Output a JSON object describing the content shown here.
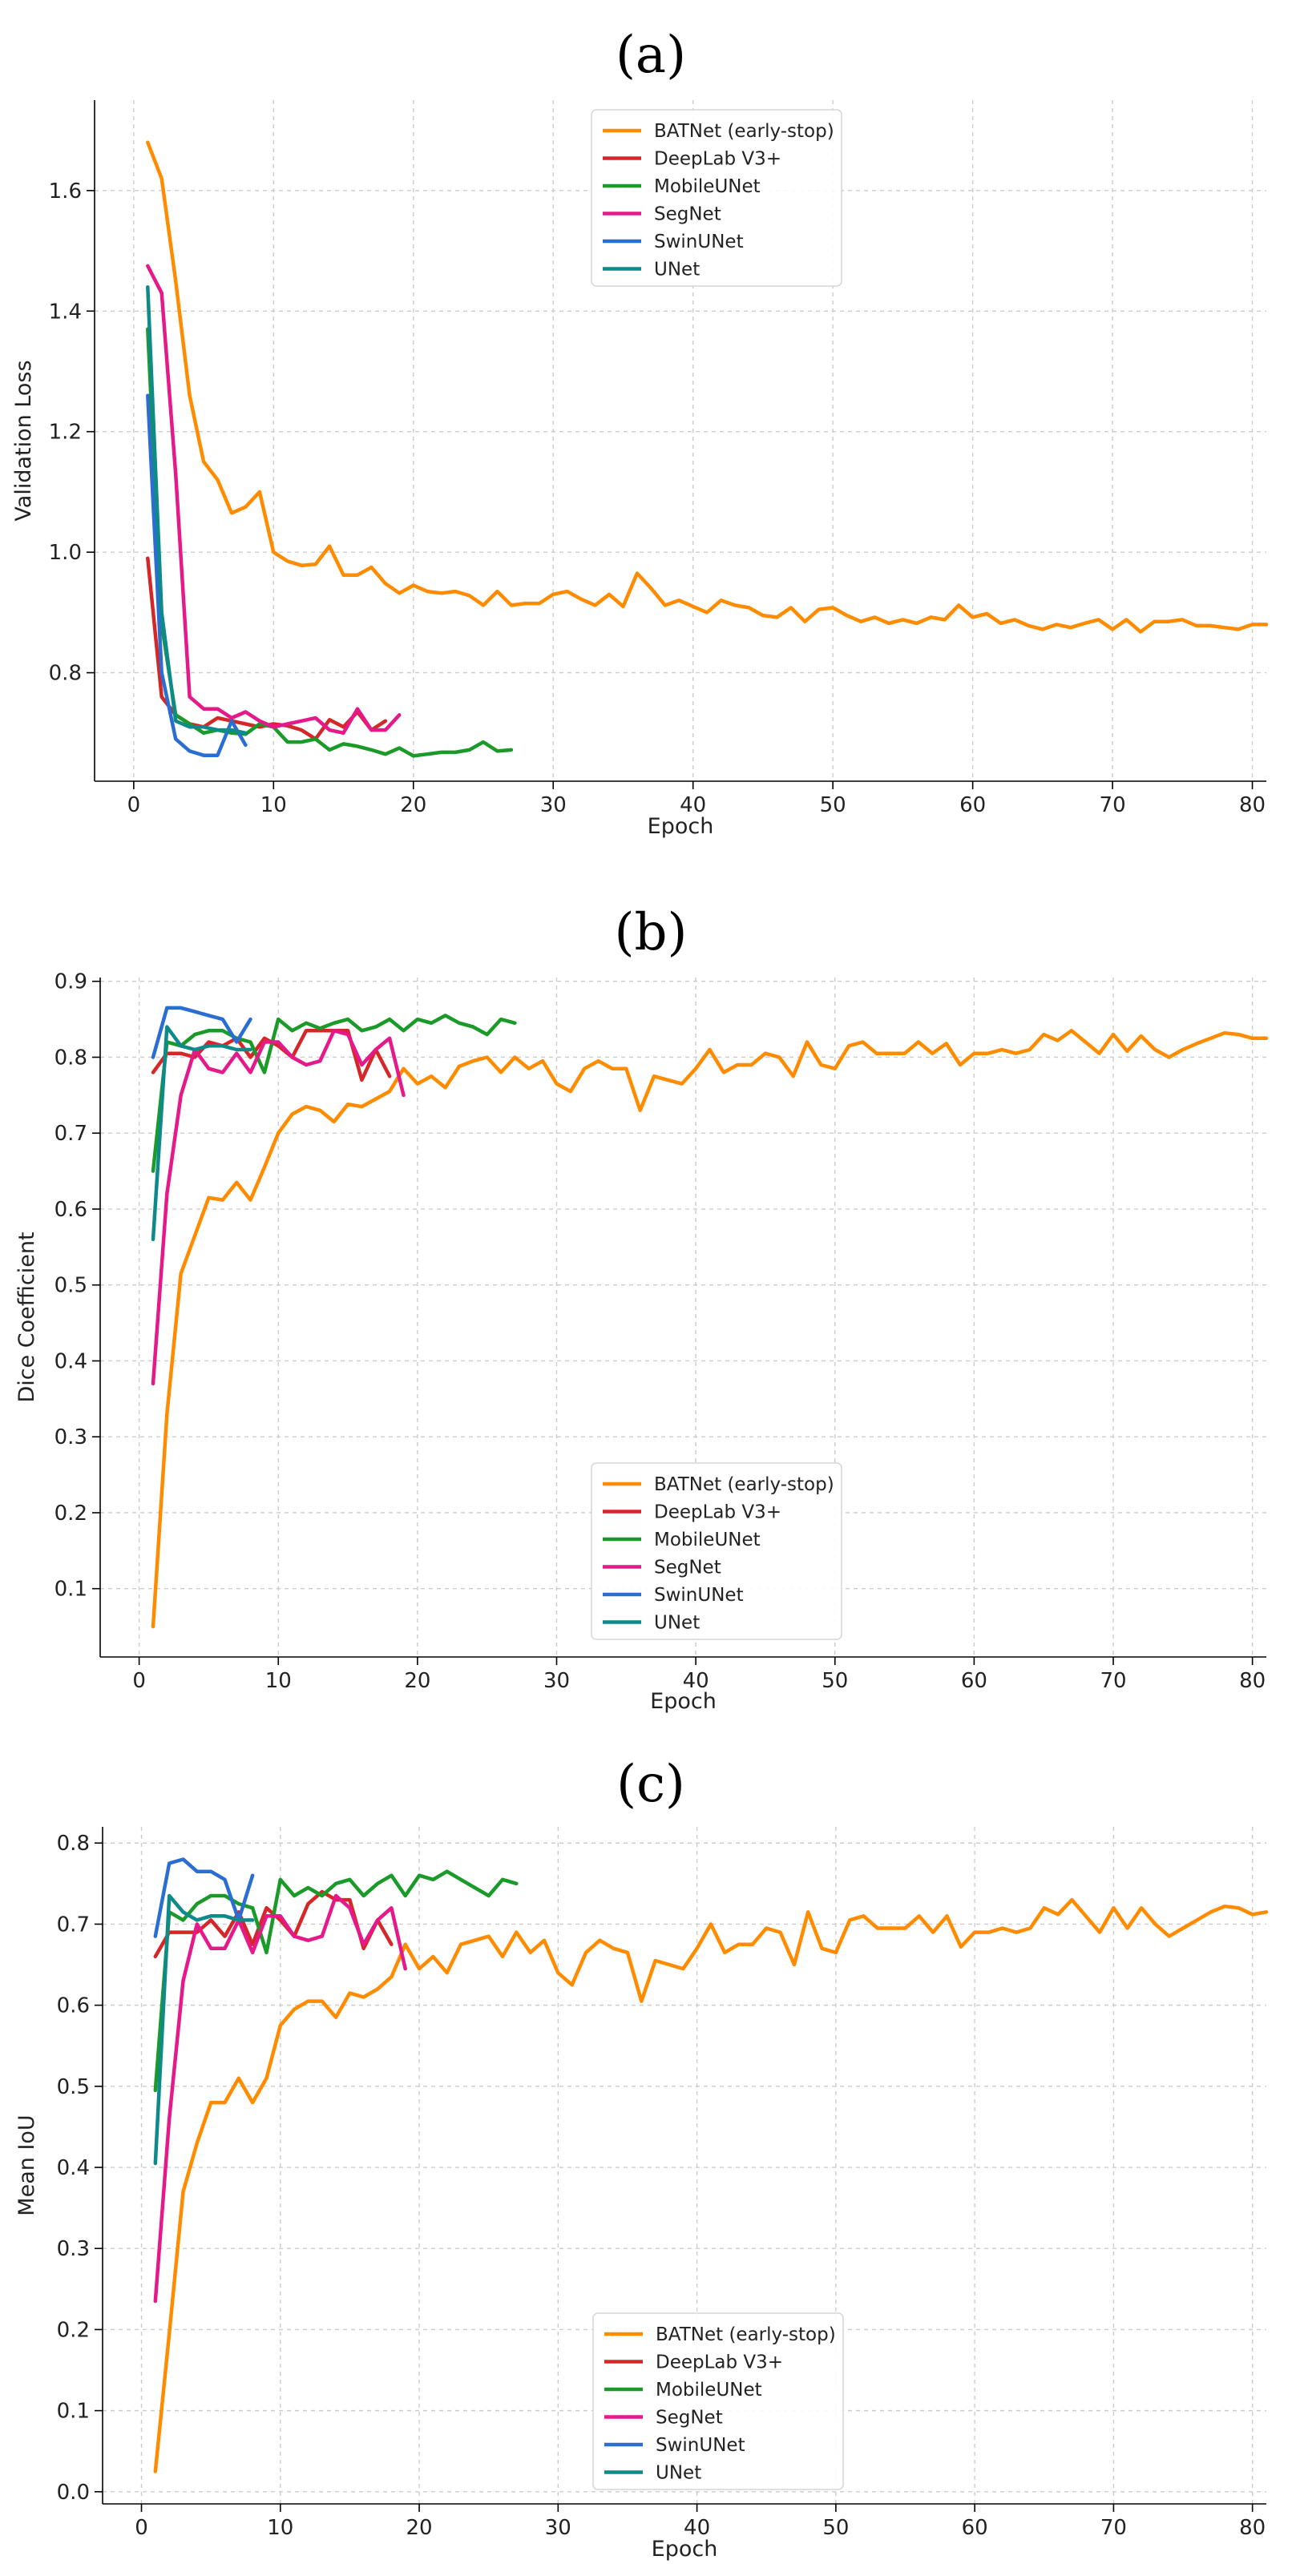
{
  "chart_data": [
    {
      "type": "line",
      "title": "(a)",
      "xlabel": "Epoch",
      "ylabel": "Validation Loss",
      "xlim": [
        -2.8,
        81
      ],
      "ylim": [
        0.62,
        1.75
      ],
      "xticks": [
        0,
        10,
        20,
        30,
        40,
        50,
        60,
        70,
        80
      ],
      "yticks": [
        0.8,
        1.0,
        1.2,
        1.4,
        1.6
      ],
      "xtick_labels": [
        "0",
        "10",
        "20",
        "30",
        "40",
        "50",
        "60",
        "70",
        "80"
      ],
      "ytick_labels": [
        "0.8",
        "1.0",
        "1.2",
        "1.4",
        "1.6"
      ],
      "grid": true,
      "legend_position": "top-center",
      "series": [
        {
          "name": "BATNet (early-stop)",
          "color": "#ff8c00",
          "x_start": 1,
          "values": [
            1.68,
            1.62,
            1.45,
            1.26,
            1.15,
            1.12,
            1.065,
            1.075,
            1.1,
            1.0,
            0.985,
            0.978,
            0.98,
            1.01,
            0.962,
            0.962,
            0.975,
            0.948,
            0.932,
            0.945,
            0.935,
            0.932,
            0.935,
            0.928,
            0.912,
            0.935,
            0.912,
            0.915,
            0.915,
            0.93,
            0.935,
            0.922,
            0.912,
            0.93,
            0.91,
            0.965,
            0.94,
            0.912,
            0.92,
            0.91,
            0.9,
            0.92,
            0.912,
            0.908,
            0.895,
            0.892,
            0.908,
            0.885,
            0.905,
            0.908,
            0.895,
            0.885,
            0.892,
            0.882,
            0.888,
            0.882,
            0.892,
            0.888,
            0.912,
            0.892,
            0.898,
            0.882,
            0.888,
            0.878,
            0.872,
            0.88,
            0.875,
            0.882,
            0.888,
            0.872,
            0.888,
            0.868,
            0.885,
            0.885,
            0.888,
            0.878,
            0.878,
            0.875,
            0.872,
            0.88,
            0.88
          ]
        },
        {
          "name": "DeepLab V3+",
          "color": "#d62728",
          "x_start": 1,
          "values": [
            0.99,
            0.76,
            0.73,
            0.715,
            0.71,
            0.725,
            0.72,
            0.715,
            0.71,
            0.715,
            0.712,
            0.705,
            0.69,
            0.722,
            0.71,
            0.735,
            0.705,
            0.72
          ]
        },
        {
          "name": "MobileUNet",
          "color": "#1a9a28",
          "x_start": 1,
          "values": [
            1.37,
            0.88,
            0.73,
            0.715,
            0.7,
            0.705,
            0.7,
            0.698,
            0.715,
            0.71,
            0.685,
            0.685,
            0.69,
            0.672,
            0.682,
            0.678,
            0.672,
            0.665,
            0.675,
            0.662,
            0.665,
            0.668,
            0.668,
            0.672,
            0.685,
            0.67,
            0.672
          ]
        },
        {
          "name": "SegNet",
          "color": "#e6198a",
          "x_start": 1,
          "values": [
            1.475,
            1.43,
            1.13,
            0.76,
            0.74,
            0.74,
            0.725,
            0.735,
            0.72,
            0.71,
            0.715,
            0.72,
            0.725,
            0.705,
            0.7,
            0.74,
            0.705,
            0.705,
            0.73
          ]
        },
        {
          "name": "SwinUNet",
          "color": "#2a6ed4",
          "x_start": 1,
          "values": [
            1.26,
            0.8,
            0.69,
            0.67,
            0.663,
            0.663,
            0.72,
            0.68
          ]
        },
        {
          "name": "UNet",
          "color": "#0e8a8a",
          "x_start": 1,
          "values": [
            1.44,
            0.9,
            0.72,
            0.71,
            0.71,
            0.705,
            0.705,
            0.7
          ]
        }
      ]
    },
    {
      "type": "line",
      "title": "(b)",
      "xlabel": "Epoch",
      "ylabel": "Dice Coefficient",
      "xlim": [
        -2.8,
        81
      ],
      "ylim": [
        0.01,
        0.905
      ],
      "xticks": [
        0,
        10,
        20,
        30,
        40,
        50,
        60,
        70,
        80
      ],
      "yticks": [
        0.1,
        0.2,
        0.3,
        0.4,
        0.5,
        0.6,
        0.7,
        0.8,
        0.9
      ],
      "xtick_labels": [
        "0",
        "10",
        "20",
        "30",
        "40",
        "50",
        "60",
        "70",
        "80"
      ],
      "ytick_labels": [
        "0.1",
        "0.2",
        "0.3",
        "0.4",
        "0.5",
        "0.6",
        "0.7",
        "0.8",
        "0.9"
      ],
      "grid": true,
      "legend_position": "lower-center",
      "series": [
        {
          "name": "BATNet (early-stop)",
          "color": "#ff8c00",
          "x_start": 1,
          "values": [
            0.05,
            0.33,
            0.515,
            0.565,
            0.615,
            0.612,
            0.635,
            0.612,
            0.655,
            0.7,
            0.725,
            0.735,
            0.73,
            0.715,
            0.738,
            0.735,
            0.745,
            0.755,
            0.785,
            0.765,
            0.775,
            0.76,
            0.788,
            0.795,
            0.8,
            0.78,
            0.8,
            0.785,
            0.795,
            0.765,
            0.755,
            0.785,
            0.795,
            0.785,
            0.785,
            0.73,
            0.775,
            0.77,
            0.765,
            0.785,
            0.81,
            0.78,
            0.79,
            0.79,
            0.805,
            0.8,
            0.775,
            0.82,
            0.79,
            0.785,
            0.815,
            0.82,
            0.805,
            0.805,
            0.805,
            0.82,
            0.805,
            0.818,
            0.79,
            0.805,
            0.805,
            0.81,
            0.805,
            0.81,
            0.83,
            0.822,
            0.835,
            0.82,
            0.805,
            0.83,
            0.808,
            0.828,
            0.81,
            0.8,
            0.81,
            0.818,
            0.825,
            0.832,
            0.83,
            0.825,
            0.825
          ]
        },
        {
          "name": "DeepLab V3+",
          "color": "#d62728",
          "x_start": 1,
          "values": [
            0.78,
            0.805,
            0.805,
            0.8,
            0.82,
            0.815,
            0.825,
            0.8,
            0.825,
            0.815,
            0.8,
            0.835,
            0.835,
            0.835,
            0.835,
            0.77,
            0.81,
            0.775
          ]
        },
        {
          "name": "MobileUNet",
          "color": "#1a9a28",
          "x_start": 1,
          "values": [
            0.65,
            0.82,
            0.815,
            0.83,
            0.835,
            0.835,
            0.825,
            0.82,
            0.78,
            0.85,
            0.835,
            0.845,
            0.838,
            0.845,
            0.85,
            0.835,
            0.84,
            0.85,
            0.835,
            0.85,
            0.845,
            0.855,
            0.845,
            0.84,
            0.83,
            0.85,
            0.845
          ]
        },
        {
          "name": "SegNet",
          "color": "#e6198a",
          "x_start": 1,
          "values": [
            0.37,
            0.62,
            0.75,
            0.81,
            0.785,
            0.78,
            0.805,
            0.78,
            0.82,
            0.82,
            0.8,
            0.79,
            0.795,
            0.835,
            0.83,
            0.79,
            0.81,
            0.825,
            0.75
          ]
        },
        {
          "name": "SwinUNet",
          "color": "#2a6ed4",
          "x_start": 1,
          "values": [
            0.8,
            0.865,
            0.865,
            0.86,
            0.855,
            0.85,
            0.82,
            0.85
          ]
        },
        {
          "name": "UNet",
          "color": "#0e8a8a",
          "x_start": 1,
          "values": [
            0.56,
            0.84,
            0.815,
            0.81,
            0.815,
            0.815,
            0.81,
            0.81
          ]
        }
      ]
    },
    {
      "type": "line",
      "title": "(c)",
      "xlabel": "Epoch",
      "ylabel": "Mean IoU",
      "xlim": [
        -2.8,
        81
      ],
      "ylim": [
        -0.015,
        0.82
      ],
      "xticks": [
        0,
        10,
        20,
        30,
        40,
        50,
        60,
        70,
        80
      ],
      "yticks": [
        0.0,
        0.1,
        0.2,
        0.3,
        0.4,
        0.5,
        0.6,
        0.7,
        0.8
      ],
      "xtick_labels": [
        "0",
        "10",
        "20",
        "30",
        "40",
        "50",
        "60",
        "70",
        "80"
      ],
      "ytick_labels": [
        "0.0",
        "0.1",
        "0.2",
        "0.3",
        "0.4",
        "0.5",
        "0.6",
        "0.7",
        "0.8"
      ],
      "grid": true,
      "legend_position": "lower-center",
      "series": [
        {
          "name": "BATNet (early-stop)",
          "color": "#ff8c00",
          "x_start": 1,
          "values": [
            0.025,
            0.195,
            0.37,
            0.43,
            0.48,
            0.48,
            0.51,
            0.48,
            0.51,
            0.575,
            0.595,
            0.605,
            0.605,
            0.585,
            0.615,
            0.61,
            0.62,
            0.635,
            0.675,
            0.645,
            0.66,
            0.64,
            0.675,
            0.68,
            0.685,
            0.66,
            0.69,
            0.665,
            0.68,
            0.64,
            0.625,
            0.665,
            0.68,
            0.67,
            0.665,
            0.605,
            0.655,
            0.65,
            0.645,
            0.67,
            0.7,
            0.665,
            0.675,
            0.675,
            0.695,
            0.69,
            0.65,
            0.715,
            0.67,
            0.665,
            0.705,
            0.71,
            0.695,
            0.695,
            0.695,
            0.71,
            0.69,
            0.71,
            0.672,
            0.69,
            0.69,
            0.695,
            0.69,
            0.695,
            0.72,
            0.712,
            0.73,
            0.71,
            0.69,
            0.72,
            0.695,
            0.72,
            0.7,
            0.685,
            0.695,
            0.705,
            0.715,
            0.722,
            0.72,
            0.712,
            0.715
          ]
        },
        {
          "name": "DeepLab V3+",
          "color": "#d62728",
          "x_start": 1,
          "values": [
            0.66,
            0.69,
            0.69,
            0.69,
            0.705,
            0.685,
            0.715,
            0.675,
            0.72,
            0.705,
            0.685,
            0.725,
            0.74,
            0.73,
            0.73,
            0.67,
            0.705,
            0.675
          ]
        },
        {
          "name": "MobileUNet",
          "color": "#1a9a28",
          "x_start": 1,
          "values": [
            0.495,
            0.715,
            0.705,
            0.725,
            0.735,
            0.735,
            0.725,
            0.72,
            0.665,
            0.755,
            0.735,
            0.745,
            0.735,
            0.75,
            0.755,
            0.735,
            0.75,
            0.76,
            0.735,
            0.76,
            0.755,
            0.765,
            0.755,
            0.745,
            0.735,
            0.755,
            0.75
          ]
        },
        {
          "name": "SegNet",
          "color": "#e6198a",
          "x_start": 1,
          "values": [
            0.235,
            0.46,
            0.63,
            0.7,
            0.67,
            0.67,
            0.705,
            0.665,
            0.71,
            0.71,
            0.685,
            0.68,
            0.685,
            0.735,
            0.72,
            0.675,
            0.705,
            0.72,
            0.645
          ]
        },
        {
          "name": "SwinUNet",
          "color": "#2a6ed4",
          "x_start": 1,
          "values": [
            0.685,
            0.775,
            0.78,
            0.765,
            0.765,
            0.755,
            0.705,
            0.76
          ]
        },
        {
          "name": "UNet",
          "color": "#0e8a8a",
          "x_start": 1,
          "values": [
            0.405,
            0.735,
            0.715,
            0.705,
            0.71,
            0.71,
            0.705,
            0.705
          ]
        }
      ]
    }
  ]
}
